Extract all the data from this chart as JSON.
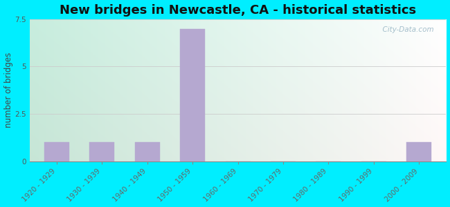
{
  "title": "New bridges in Newcastle, CA - historical statistics",
  "ylabel": "number of bridges",
  "categories": [
    "1920 - 1929",
    "1930 - 1939",
    "1940 - 1949",
    "1950 - 1959",
    "1960 - 1969",
    "1970 - 1979",
    "1980 - 1989",
    "1990 - 1999",
    "2000 - 2009"
  ],
  "values": [
    1,
    1,
    1,
    7,
    0,
    0,
    0,
    0,
    1
  ],
  "bar_color": "#b5a8d0",
  "ylim": [
    0,
    7.5
  ],
  "yticks": [
    0,
    2.5,
    5,
    7.5
  ],
  "outer_bg": "#00eeff",
  "plot_bg_left": "#c8eedd",
  "plot_bg_right": "#f0f8f0",
  "title_fontsize": 13,
  "axis_label_fontsize": 8.5,
  "tick_fontsize": 7.5,
  "watermark": "  City-Data.com"
}
